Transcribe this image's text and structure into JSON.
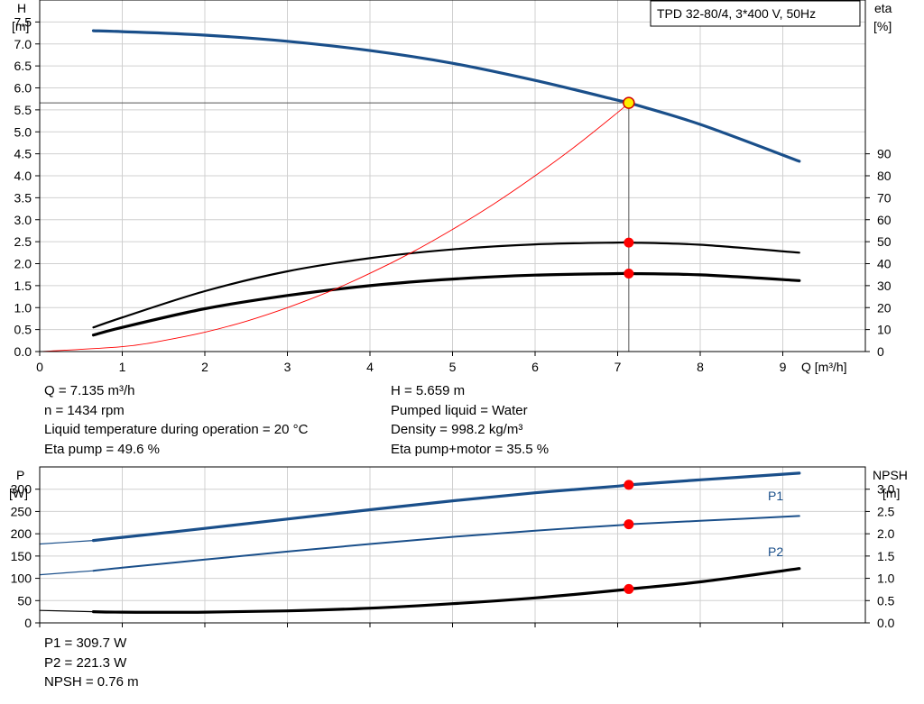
{
  "pump_label": "TPD 32-80/4, 3*400 V, 50Hz",
  "top_chart": {
    "left_axis": {
      "symbol": "H",
      "unit": "[m]"
    },
    "right_axis": {
      "symbol": "eta",
      "unit": "[%]"
    },
    "x_axis_label": "Q [m³/h]"
  },
  "bottom_chart": {
    "left_axis": {
      "symbol": "P",
      "unit": "[W]"
    },
    "right_axis": {
      "symbol": "NPSH",
      "unit": "[m]"
    }
  },
  "operating_point": {
    "q": "Q = 7.135 m³/h",
    "h": "H = 5.659 m",
    "speed": "n = 1434 rpm",
    "liquid": "Pumped liquid = Water",
    "temperature": "Liquid temperature during operation = 20 °C",
    "density": "Density = 998.2 kg/m³",
    "eta_pump": "Eta pump = 49.6 %",
    "eta_total": "Eta pump+motor = 35.5 %",
    "p1": "P1 = 309.7 W",
    "p2": "P2 = 221.3 W",
    "npsh": "NPSH = 0.76 m"
  },
  "colors": {
    "blue": "#1a4f8a",
    "black": "#000000",
    "red": "#ff0000",
    "operating_marker": "#ffee00",
    "grid": "#d0d0d0"
  },
  "chart_data": [
    {
      "type": "line",
      "x_label": "Q [m³/h]",
      "xlim": [
        0,
        10
      ],
      "xticks": [
        0,
        1,
        2,
        3,
        4,
        5,
        6,
        7,
        8,
        9
      ],
      "y_left": {
        "label": "H [m]",
        "lim": [
          0,
          8
        ],
        "ticks": [
          0.0,
          0.5,
          1.0,
          1.5,
          2.0,
          2.5,
          3.0,
          3.5,
          4.0,
          4.5,
          5.0,
          5.5,
          6.0,
          6.5,
          7.0,
          7.5
        ]
      },
      "y_right": {
        "label": "eta [%]",
        "lim": [
          0,
          160
        ],
        "ticks": [
          0,
          10,
          20,
          30,
          40,
          50,
          60,
          70,
          80,
          90
        ]
      },
      "grid": true,
      "series": [
        {
          "axis": "left",
          "color": "#1a4f8a",
          "width": 3.2,
          "x": [
            0.65,
            1,
            2,
            3,
            4,
            5,
            6,
            7,
            7.135,
            8,
            9.2
          ],
          "y": [
            7.3,
            7.28,
            7.2,
            7.06,
            6.85,
            6.56,
            6.17,
            5.72,
            5.659,
            5.17,
            4.33
          ]
        },
        {
          "axis": "right",
          "color": "#000000",
          "width": 2.2,
          "x": [
            0.65,
            1,
            2,
            3,
            4,
            5,
            6,
            7,
            7.135,
            8,
            9.2
          ],
          "y": [
            11.0,
            15.5,
            27.5,
            36.5,
            42.5,
            46.5,
            48.8,
            49.6,
            49.6,
            48.6,
            45.0
          ]
        },
        {
          "axis": "right",
          "color": "#000000",
          "width": 3.2,
          "x": [
            0.65,
            1,
            2,
            3,
            4,
            5,
            6,
            7,
            7.135,
            8,
            9.2
          ],
          "y": [
            7.5,
            11.0,
            19.5,
            25.5,
            30.0,
            33.0,
            34.8,
            35.5,
            35.5,
            34.9,
            32.3
          ]
        },
        {
          "axis": "left",
          "color": "#ff0000",
          "width": 0.9,
          "x": [
            0,
            1,
            1.5,
            2,
            2.5,
            3,
            3.5,
            4,
            4.5,
            5,
            5.5,
            6,
            6.5,
            7,
            7.135
          ],
          "y": [
            0,
            0.11,
            0.25,
            0.44,
            0.69,
            1.0,
            1.36,
            1.78,
            2.25,
            2.78,
            3.36,
            4.0,
            4.69,
            5.44,
            5.659
          ]
        }
      ],
      "markers": [
        {
          "axis": "left",
          "x": 7.135,
          "y": 5.659,
          "style": "operating"
        },
        {
          "axis": "right",
          "x": 7.135,
          "y": 49.6,
          "style": "dot"
        },
        {
          "axis": "right",
          "x": 7.135,
          "y": 35.5,
          "style": "dot"
        }
      ]
    },
    {
      "type": "line",
      "xlim": [
        0,
        10
      ],
      "xticks": [
        0,
        1,
        2,
        3,
        4,
        5,
        6,
        7,
        8,
        9
      ],
      "y_left": {
        "label": "P [W]",
        "lim": [
          0,
          350
        ],
        "ticks": [
          0,
          50,
          100,
          150,
          200,
          250,
          300
        ]
      },
      "y_right": {
        "label": "NPSH [m]",
        "lim": [
          0,
          3.5
        ],
        "ticks": [
          0.0,
          0.5,
          1.0,
          1.5,
          2.0,
          2.5,
          3.0
        ]
      },
      "grid": true,
      "series": [
        {
          "name": "P1",
          "axis": "left",
          "color": "#1a4f8a",
          "width": 3.2,
          "x": [
            0.65,
            1,
            2,
            3,
            4,
            5,
            6,
            7,
            7.135,
            8,
            9.2
          ],
          "y": [
            185,
            192,
            212,
            233,
            254,
            274,
            292,
            307,
            309.7,
            321,
            336
          ]
        },
        {
          "axis": "left",
          "color": "#1a4f8a",
          "width": 1.2,
          "dashed_ext": true,
          "x": [
            0,
            0.65
          ],
          "y": [
            177,
            185
          ]
        },
        {
          "name": "P2",
          "axis": "left",
          "color": "#1a4f8a",
          "width": 2.0,
          "x": [
            0.65,
            1,
            2,
            3,
            4,
            5,
            6,
            7,
            7.135,
            8,
            9.2
          ],
          "y": [
            117,
            124,
            142,
            160,
            177,
            193,
            207,
            219,
            221.3,
            229,
            240
          ]
        },
        {
          "axis": "left",
          "color": "#1a4f8a",
          "width": 1.2,
          "x": [
            0,
            0.65
          ],
          "y": [
            108,
            117
          ]
        },
        {
          "axis": "right",
          "color": "#000000",
          "width": 3.2,
          "x": [
            0.65,
            1,
            2,
            3,
            4,
            5,
            6,
            7,
            7.135,
            8,
            9.2
          ],
          "y": [
            0.25,
            0.24,
            0.24,
            0.27,
            0.33,
            0.43,
            0.56,
            0.73,
            0.76,
            0.92,
            1.22
          ]
        },
        {
          "axis": "right",
          "color": "#000000",
          "width": 1.2,
          "x": [
            0,
            0.65
          ],
          "y": [
            0.28,
            0.25
          ]
        }
      ],
      "markers": [
        {
          "axis": "left",
          "x": 7.135,
          "y": 309.7,
          "style": "dot"
        },
        {
          "axis": "left",
          "x": 7.135,
          "y": 221.3,
          "style": "dot"
        },
        {
          "axis": "right",
          "x": 7.135,
          "y": 0.76,
          "style": "dot"
        }
      ]
    }
  ]
}
